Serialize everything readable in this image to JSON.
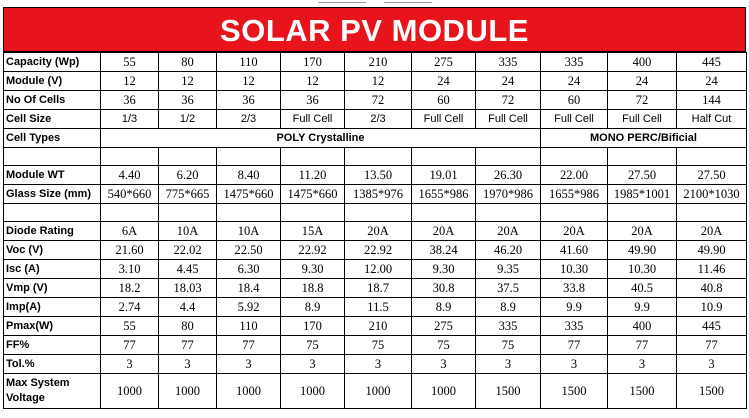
{
  "title": "SOLAR PV MODULE",
  "labels": {
    "capacity": "Capacity (Wp)",
    "module": "Module (V)",
    "cells": "No Of Cells",
    "cell_size": "Cell Size",
    "cell_types": "Cell Types",
    "module_wt": "Module WT",
    "glass": "Glass Size (mm)",
    "diode": "Diode Rating",
    "voc": "Voc (V)",
    "isc": "Isc (A)",
    "vmp": "Vmp (V)",
    "imp": "Imp(A)",
    "pmax": "Pmax(W)",
    "ff": "FF%",
    "tol": "Tol.%",
    "max_voltage": "Max System Voltage"
  },
  "groups": {
    "poly": "POLY Crystalline",
    "mono": "MONO PERC/Bificial"
  },
  "capacity": [
    "55",
    "80",
    "110",
    "170",
    "210",
    "275",
    "335",
    "335",
    "400",
    "445"
  ],
  "module": [
    "12",
    "12",
    "12",
    "12",
    "12",
    "24",
    "24",
    "24",
    "24",
    "24"
  ],
  "cells": [
    "36",
    "36",
    "36",
    "36",
    "72",
    "60",
    "72",
    "60",
    "72",
    "144"
  ],
  "cell_size": [
    "1/3",
    "1/2",
    "2/3",
    "Full Cell",
    "2/3",
    "Full Cell",
    "Full Cell",
    "Full Cell",
    "Full Cell",
    "Half Cut"
  ],
  "module_wt": [
    "4.40",
    "6.20",
    "8.40",
    "11.20",
    "13.50",
    "19.01",
    "26.30",
    "22.00",
    "27.50",
    "27.50"
  ],
  "glass": [
    "540*660",
    "775*665",
    "1475*660",
    "1475*660",
    "1385*976",
    "1655*986",
    "1970*986",
    "1655*986",
    "1985*1001",
    "2100*1030"
  ],
  "diode": [
    "6A",
    "10A",
    "10A",
    "15A",
    "20A",
    "20A",
    "20A",
    "20A",
    "20A",
    "20A"
  ],
  "voc": [
    "21.60",
    "22.02",
    "22.50",
    "22.92",
    "22.92",
    "38.24",
    "46.20",
    "41.60",
    "49.90",
    "49.90"
  ],
  "isc": [
    "3.10",
    "4.45",
    "6.30",
    "9.30",
    "12.00",
    "9.30",
    "9.35",
    "10.30",
    "10.30",
    "11.46"
  ],
  "vmp": [
    "18.2",
    "18.03",
    "18.4",
    "18.8",
    "18.7",
    "30.8",
    "37.5",
    "33.8",
    "40.5",
    "40.8"
  ],
  "imp": [
    "2.74",
    "4.4",
    "5.92",
    "8.9",
    "11.5",
    "8.9",
    "8.9",
    "9.9",
    "9.9",
    "10.9"
  ],
  "pmax": [
    "55",
    "80",
    "110",
    "170",
    "210",
    "275",
    "335",
    "335",
    "400",
    "445"
  ],
  "ff": [
    "77",
    "77",
    "77",
    "75",
    "75",
    "75",
    "75",
    "77",
    "77",
    "77"
  ],
  "tol": [
    "3",
    "3",
    "3",
    "3",
    "3",
    "3",
    "3",
    "3",
    "3",
    "3"
  ],
  "max_voltage": [
    "1000",
    "1000",
    "1000",
    "1000",
    "1000",
    "1000",
    "1500",
    "1500",
    "1500",
    "1500"
  ]
}
